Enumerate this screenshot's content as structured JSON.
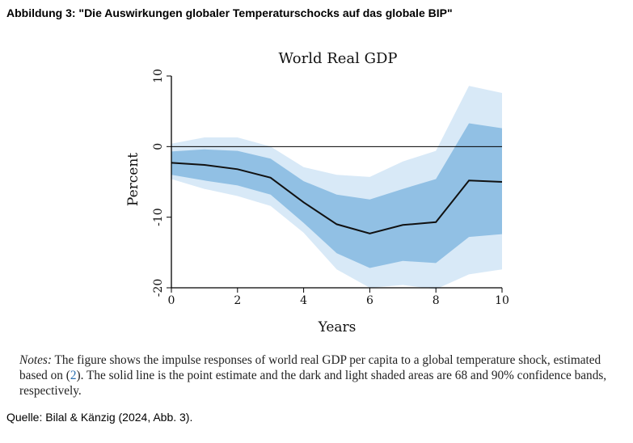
{
  "heading": "Abbildung 3: \"Die Auswirkungen globaler Temperaturschocks auf das globale BIP\"",
  "chart_data": {
    "type": "line",
    "title": "World Real GDP",
    "xlabel": "Years",
    "ylabel": "Percent",
    "xlim": [
      0,
      10
    ],
    "ylim": [
      -20,
      10
    ],
    "xticks": [
      "0",
      "2",
      "4",
      "6",
      "8",
      "10"
    ],
    "yticks": [
      "-20",
      "-10",
      "0",
      "10"
    ],
    "x": [
      0,
      1,
      2,
      3,
      4,
      5,
      6,
      7,
      8,
      9,
      10
    ],
    "series": [
      {
        "name": "point estimate",
        "values": [
          -2.3,
          -2.6,
          -3.2,
          -4.4,
          -7.9,
          -11.0,
          -12.3,
          -11.1,
          -10.7,
          -4.8,
          -5.0
        ]
      },
      {
        "name": "68% band lower",
        "values": [
          -4.0,
          -4.8,
          -5.5,
          -6.8,
          -10.8,
          -15.1,
          -17.2,
          -16.2,
          -16.5,
          -12.8,
          -12.4
        ]
      },
      {
        "name": "68% band upper",
        "values": [
          -0.7,
          -0.4,
          -0.6,
          -1.7,
          -4.9,
          -6.8,
          -7.5,
          -6.0,
          -4.6,
          3.3,
          2.6
        ]
      },
      {
        "name": "90% band lower",
        "values": [
          -4.6,
          -6.0,
          -7.0,
          -8.4,
          -12.2,
          -17.4,
          -20.0,
          -19.6,
          -20.2,
          -18.1,
          -17.4
        ]
      },
      {
        "name": "90% band upper",
        "values": [
          0.4,
          1.3,
          1.3,
          0.0,
          -2.9,
          -4.0,
          -4.3,
          -2.1,
          -0.6,
          8.6,
          7.6
        ]
      }
    ],
    "hline": 0,
    "colors": {
      "band68": "#91c0e4",
      "band90": "#d8e9f7",
      "line": "#111111",
      "axis": "#000000"
    }
  },
  "notes": {
    "label": "Notes:",
    "text_before": " The figure shows the impulse responses of world real GDP per capita to a global temperature shock, estimated based on (",
    "ref": "2",
    "text_after": "). The solid line is the point estimate and the dark and light shaded areas are 68 and 90% confidence bands, respectively."
  },
  "source": "Quelle: Bilal & Känzig (2024, Abb. 3)."
}
